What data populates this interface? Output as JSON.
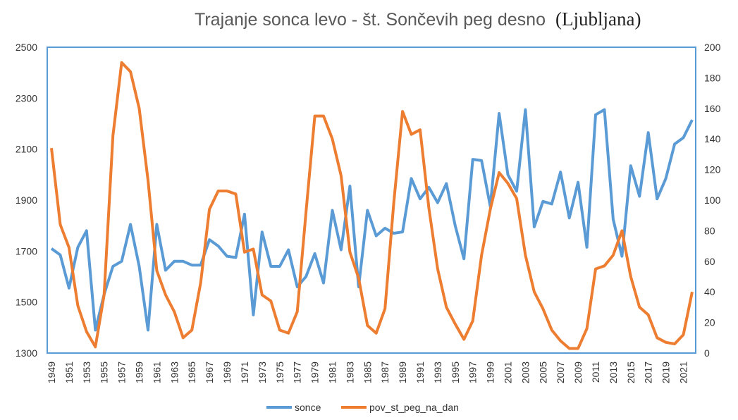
{
  "chart_data": {
    "type": "line",
    "title": "Trajanje sonca levo - št. Sončevih peg desno",
    "title_location": "(Ljubljana)",
    "x": [
      1949,
      1950,
      1951,
      1952,
      1953,
      1954,
      1955,
      1956,
      1957,
      1958,
      1959,
      1960,
      1961,
      1962,
      1963,
      1964,
      1965,
      1966,
      1967,
      1968,
      1969,
      1970,
      1971,
      1972,
      1973,
      1974,
      1975,
      1976,
      1977,
      1978,
      1979,
      1980,
      1981,
      1982,
      1983,
      1984,
      1985,
      1986,
      1987,
      1988,
      1989,
      1990,
      1991,
      1992,
      1993,
      1994,
      1995,
      1996,
      1997,
      1998,
      1999,
      2000,
      2001,
      2002,
      2003,
      2004,
      2005,
      2006,
      2007,
      2008,
      2009,
      2010,
      2011,
      2012,
      2013,
      2014,
      2015,
      2016,
      2017,
      2018,
      2019,
      2020,
      2021,
      2022
    ],
    "x_tick_labels": [
      "1949",
      "1951",
      "1953",
      "1955",
      "1957",
      "1959",
      "1961",
      "1963",
      "1965",
      "1967",
      "1969",
      "1971",
      "1973",
      "1975",
      "1977",
      "1979",
      "1981",
      "1983",
      "1985",
      "1987",
      "1989",
      "1991",
      "1993",
      "1995",
      "1997",
      "1999",
      "2001",
      "2003",
      "2005",
      "2007",
      "2009",
      "2011",
      "2013",
      "2015",
      "2017",
      "2019",
      "2021"
    ],
    "y_left": {
      "range": [
        1300,
        2500
      ],
      "ticks": [
        "1300",
        "1500",
        "1700",
        "1900",
        "2100",
        "2300",
        "2500"
      ]
    },
    "y_right": {
      "range": [
        0,
        200
      ],
      "ticks": [
        "0",
        "20",
        "40",
        "60",
        "80",
        "100",
        "120",
        "140",
        "160",
        "180",
        "200"
      ]
    },
    "series": [
      {
        "name": "sonce",
        "axis": "left",
        "color": "#5b9bd5",
        "values": [
          1710,
          1685,
          1555,
          1715,
          1780,
          1390,
          1530,
          1640,
          1660,
          1805,
          1640,
          1390,
          1805,
          1625,
          1660,
          1660,
          1645,
          1645,
          1745,
          1720,
          1680,
          1675,
          1845,
          1450,
          1775,
          1640,
          1640,
          1705,
          1560,
          1600,
          1690,
          1575,
          1860,
          1705,
          1955,
          1560,
          1860,
          1760,
          1790,
          1770,
          1775,
          1985,
          1905,
          1950,
          1890,
          1965,
          1800,
          1670,
          2060,
          2055,
          1875,
          2240,
          2000,
          1935,
          2255,
          1795,
          1895,
          1885,
          2010,
          1830,
          1970,
          1715,
          2235,
          2255,
          1825,
          1680,
          2035,
          1915,
          2165,
          1905,
          1985,
          2120,
          2145,
          2215
        ]
      },
      {
        "name": "pov_st_peg_na_dan",
        "axis": "right",
        "color": "#ed7d31",
        "values": [
          134,
          84,
          69,
          31,
          14,
          4,
          38,
          142,
          190,
          184,
          160,
          113,
          54,
          38,
          27,
          10,
          15,
          46,
          94,
          106,
          106,
          104,
          66,
          68,
          38,
          34,
          15,
          13,
          27,
          92,
          155,
          155,
          140,
          116,
          66,
          49,
          18,
          13,
          29,
          98,
          158,
          143,
          146,
          95,
          55,
          30,
          19,
          9,
          21,
          64,
          94,
          118,
          111,
          101,
          64,
          40,
          29,
          15,
          8,
          3,
          3,
          16,
          55,
          57,
          64,
          80,
          50,
          30,
          25,
          10,
          7,
          6,
          12,
          40
        ]
      }
    ],
    "legend_position": "bottom",
    "grid": false,
    "frame_color": "#5b9bd5"
  }
}
